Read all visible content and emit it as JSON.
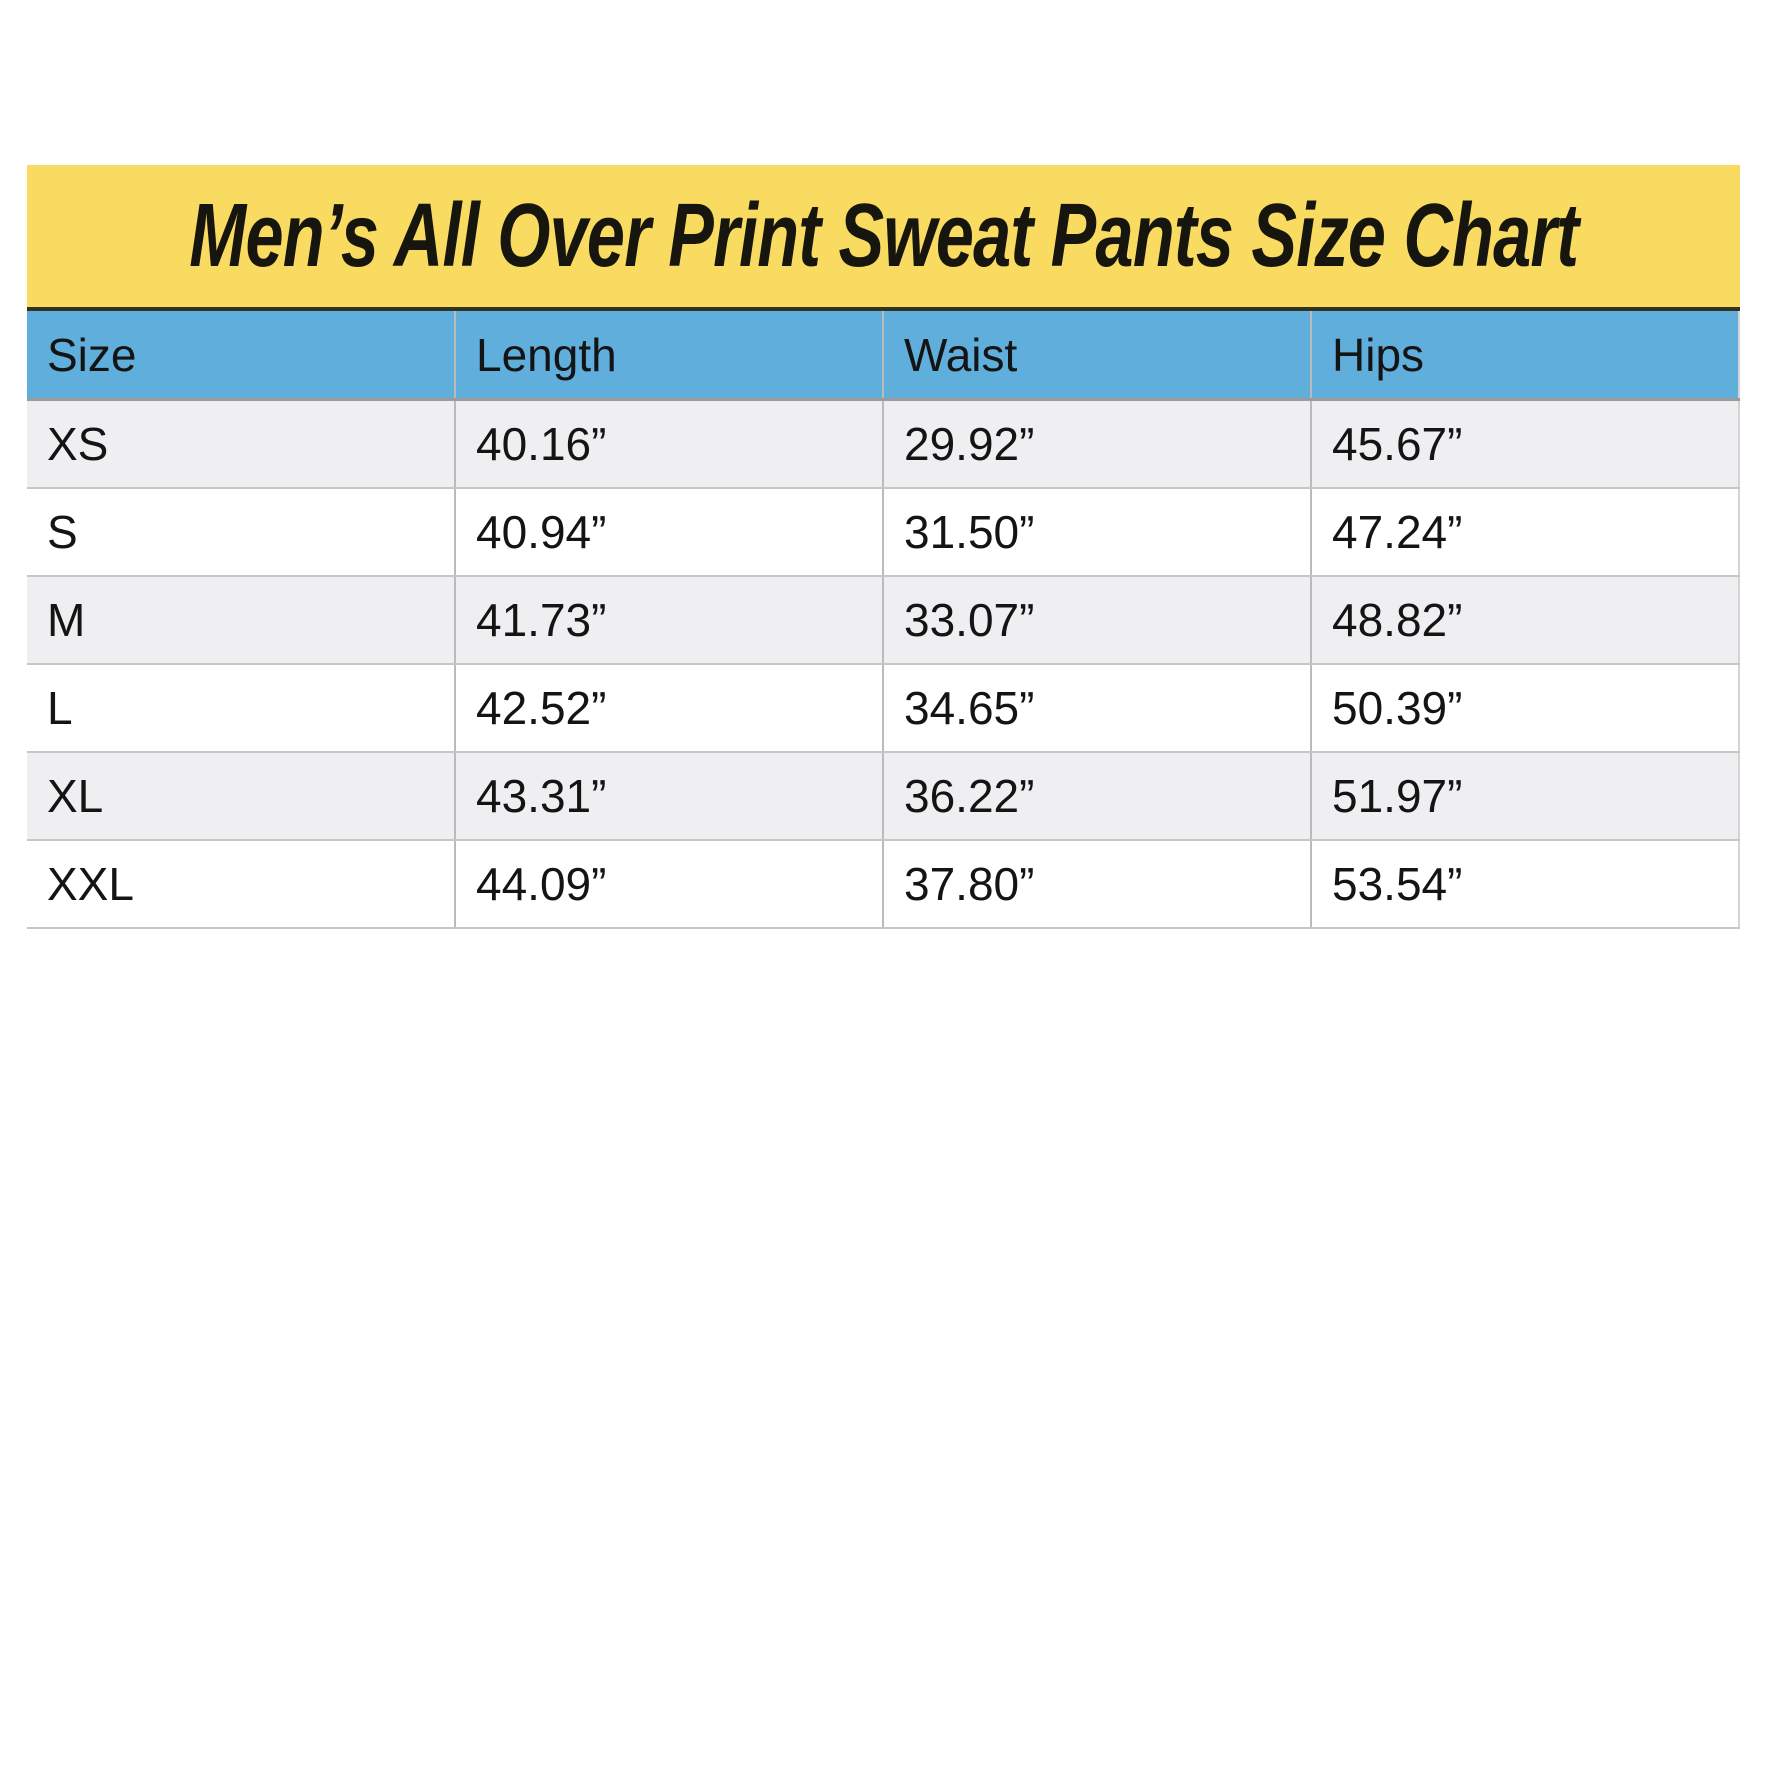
{
  "banner": {
    "title": "Men’s All Over Print Sweat Pants Size Chart",
    "background_color": "#F8DB60",
    "underline_color": "#32321E"
  },
  "table": {
    "header": {
      "background_color": "#5FAEDB",
      "columns": [
        "Size",
        "Length",
        "Waist",
        "Hips"
      ]
    },
    "row_colors": {
      "odd": "#EFEFF1",
      "even": "#FFFFFF"
    },
    "rows": [
      [
        "XS",
        "40.16”",
        "29.92”",
        "45.67”"
      ],
      [
        "S",
        "40.94”",
        "31.50”",
        "47.24”"
      ],
      [
        "M",
        "41.73”",
        "33.07”",
        "48.82”"
      ],
      [
        "L",
        "42.52”",
        "34.65”",
        "50.39”"
      ],
      [
        "XL",
        "43.31”",
        "36.22”",
        "51.97”"
      ],
      [
        "XXL",
        "44.09”",
        "37.80”",
        "53.54”"
      ]
    ]
  },
  "chart_data": {
    "type": "table",
    "title": "Men’s All Over Print Sweat Pants Size Chart",
    "columns": [
      "Size",
      "Length",
      "Waist",
      "Hips"
    ],
    "units": "inches",
    "rows": [
      {
        "size": "XS",
        "length_in": 40.16,
        "waist_in": 29.92,
        "hips_in": 45.67
      },
      {
        "size": "S",
        "length_in": 40.94,
        "waist_in": 31.5,
        "hips_in": 47.24
      },
      {
        "size": "M",
        "length_in": 41.73,
        "waist_in": 33.07,
        "hips_in": 48.82
      },
      {
        "size": "L",
        "length_in": 42.52,
        "waist_in": 34.65,
        "hips_in": 50.39
      },
      {
        "size": "XL",
        "length_in": 43.31,
        "waist_in": 36.22,
        "hips_in": 51.97
      },
      {
        "size": "XXL",
        "length_in": 44.09,
        "waist_in": 37.8,
        "hips_in": 53.54
      }
    ]
  }
}
